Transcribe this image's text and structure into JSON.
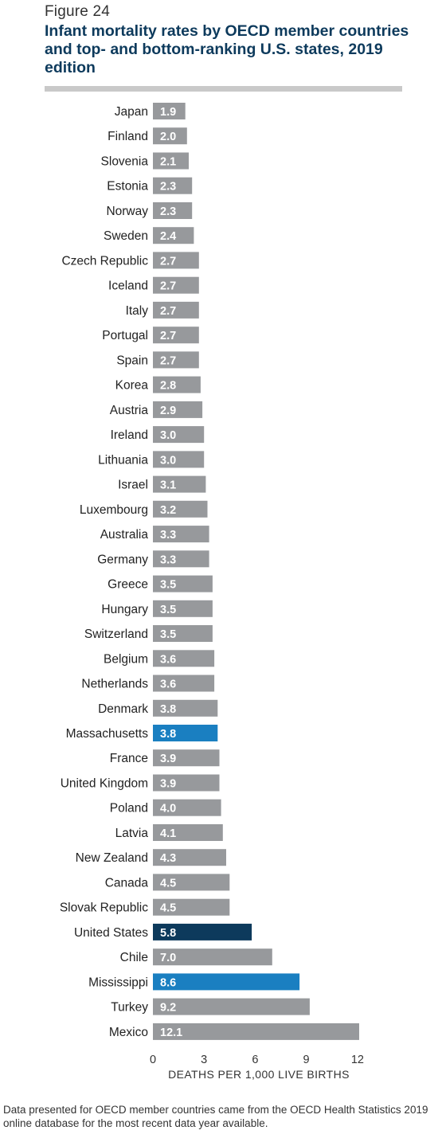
{
  "figure_label": "Figure 24",
  "title": "Infant mortality rates by OECD member countries and top- and bottom-ranking U.S. states, 2019 edition",
  "footnote": "Data presented for OECD member countries came from the OECD Health Statistics 2019 online database for the most recent data year available.",
  "colors": {
    "country": "#97999c",
    "us_state": "#1a7fc1",
    "united_states": "#0d3a5c",
    "rule": "#c9c9c9"
  },
  "chart_data": {
    "type": "bar",
    "orientation": "horizontal",
    "title": "",
    "xlabel": "DEATHS PER 1,000 LIVE BIRTHS",
    "ylabel": "",
    "xlim": [
      0,
      12.1
    ],
    "xticks": [
      0,
      3,
      6,
      9,
      12
    ],
    "grid": false,
    "categories": [
      "Japan",
      "Finland",
      "Slovenia",
      "Estonia",
      "Norway",
      "Sweden",
      "Czech Republic",
      "Iceland",
      "Italy",
      "Portugal",
      "Spain",
      "Korea",
      "Austria",
      "Ireland",
      "Lithuania",
      "Israel",
      "Luxembourg",
      "Australia",
      "Germany",
      "Greece",
      "Hungary",
      "Switzerland",
      "Belgium",
      "Netherlands",
      "Denmark",
      "Massachusetts",
      "France",
      "United Kingdom",
      "Poland",
      "Latvia",
      "New Zealand",
      "Canada",
      "Slovak Republic",
      "United States",
      "Chile",
      "Mississippi",
      "Turkey",
      "Mexico"
    ],
    "values": [
      1.9,
      2.0,
      2.1,
      2.3,
      2.3,
      2.4,
      2.7,
      2.7,
      2.7,
      2.7,
      2.7,
      2.8,
      2.9,
      3.0,
      3.0,
      3.1,
      3.2,
      3.3,
      3.3,
      3.5,
      3.5,
      3.5,
      3.6,
      3.6,
      3.8,
      3.8,
      3.9,
      3.9,
      4.0,
      4.1,
      4.3,
      4.5,
      4.5,
      5.8,
      7.0,
      8.6,
      9.2,
      12.1
    ],
    "value_labels": [
      "1.9",
      "2.0",
      "2.1",
      "2.3",
      "2.3",
      "2.4",
      "2.7",
      "2.7",
      "2.7",
      "2.7",
      "2.7",
      "2.8",
      "2.9",
      "3.0",
      "3.0",
      "3.1",
      "3.2",
      "3.3",
      "3.3",
      "3.5",
      "3.5",
      "3.5",
      "3.6",
      "3.6",
      "3.8",
      "3.8",
      "3.9",
      "3.9",
      "4.0",
      "4.1",
      "4.3",
      "4.5",
      "4.5",
      "5.8",
      "7.0",
      "8.6",
      "9.2",
      "12.1"
    ],
    "groups": [
      "country",
      "country",
      "country",
      "country",
      "country",
      "country",
      "country",
      "country",
      "country",
      "country",
      "country",
      "country",
      "country",
      "country",
      "country",
      "country",
      "country",
      "country",
      "country",
      "country",
      "country",
      "country",
      "country",
      "country",
      "country",
      "us_state",
      "country",
      "country",
      "country",
      "country",
      "country",
      "country",
      "country",
      "united_states",
      "country",
      "us_state",
      "country",
      "country"
    ]
  }
}
